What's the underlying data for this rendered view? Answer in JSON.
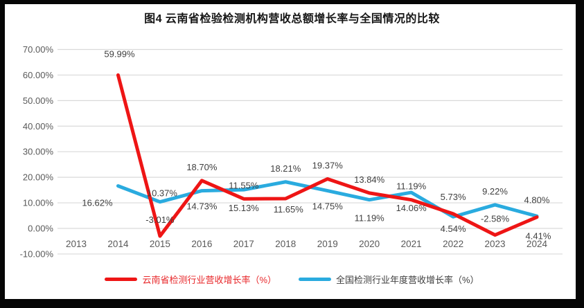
{
  "page": {
    "title": "图4 云南省检验检测机构营收总额增长率与全国情况的比较"
  },
  "chart_data": {
    "type": "line",
    "title": "图4 云南省检验检测机构营收总额增长率与全国情况的比较",
    "categories": [
      "2013",
      "2014",
      "2015",
      "2016",
      "2017",
      "2018",
      "2019",
      "2020",
      "2021",
      "2022",
      "2023",
      "2024"
    ],
    "y_axis": {
      "min": -10,
      "max": 70,
      "step": 10,
      "ticks": [
        "70.00%",
        "60.00%",
        "50.00%",
        "40.00%",
        "30.00%",
        "20.00%",
        "10.00%",
        "0.00%",
        "-10.00%"
      ]
    },
    "grid": true,
    "legend_position": "bottom",
    "colors": {
      "grid": "#d9d9d9",
      "axis_text": "#595959",
      "label_text": "#3f3f3f",
      "title_text": "#151515",
      "background": "#ffffff",
      "frame": "#060606"
    },
    "series": [
      {
        "name": "云南省检测行业营收增长率（%）",
        "key": "yunnan",
        "color": "#ee1515",
        "legend_text_color": "#e8282b",
        "values": [
          null,
          59.99,
          -3.01,
          18.7,
          11.55,
          11.65,
          19.37,
          13.84,
          11.19,
          5.73,
          -2.58,
          4.41
        ],
        "labels": [
          "",
          "59.99%",
          "-3.01%",
          "18.70%",
          "11.55%",
          "11.65%",
          "19.37%",
          "13.84%",
          "11.19%",
          "5.73%",
          "-2.58%",
          "4.41%"
        ],
        "label_pos": [
          "",
          "above",
          "above",
          "above",
          "above",
          "below",
          "above",
          "above",
          "above",
          "above",
          "above",
          "below"
        ],
        "label_offsets": {
          "1": [
            2,
            -11
          ],
          "2": [
            0,
            -4
          ],
          "5": [
            4,
            -7
          ],
          "9": [
            0,
            -5
          ],
          "10": [
            0,
            -4
          ],
          "11": [
            2,
            5
          ]
        }
      },
      {
        "name": "全国检测行业年度营收增长率（%）",
        "key": "national",
        "color": "#2aabdf",
        "legend_text_color": "#3f3f3f",
        "values": [
          null,
          16.62,
          10.37,
          14.73,
          15.13,
          18.21,
          14.75,
          11.19,
          14.06,
          4.54,
          9.22,
          4.8
        ],
        "labels": [
          "",
          "16.62%",
          "10.37%",
          "14.73%",
          "15.13%",
          "18.21%",
          "14.75%",
          "11.19%",
          "14.06%",
          "4.54%",
          "9.22%",
          "4.80%"
        ],
        "label_pos": [
          "",
          "below",
          "above",
          "below",
          "below",
          "above",
          "below",
          "below",
          "below",
          "below",
          "above",
          "above"
        ],
        "label_offsets": {
          "1": [
            -30,
            2
          ],
          "2": [
            3,
            7
          ],
          "4": [
            0,
            4
          ],
          "7": [
            0,
            4
          ],
          "9": [
            0,
            -5
          ],
          "11": [
            0,
            -4
          ]
        }
      }
    ]
  }
}
